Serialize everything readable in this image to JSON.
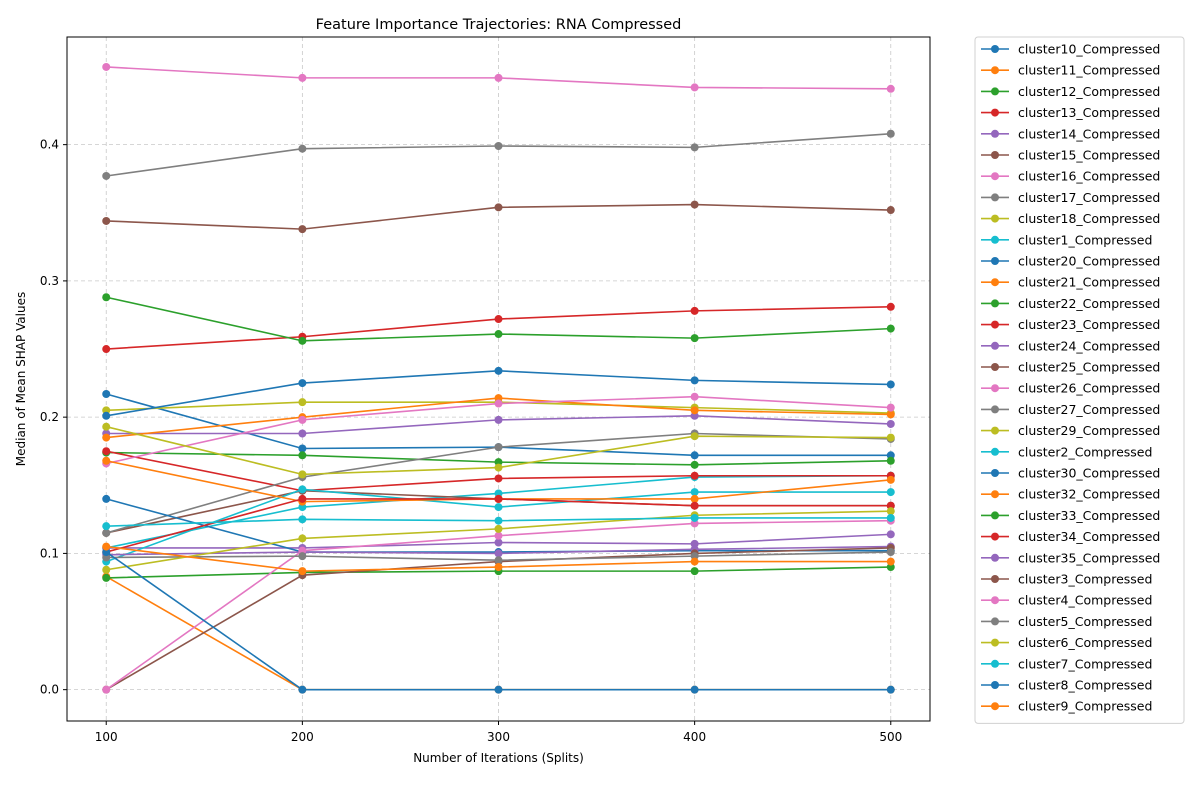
{
  "chart_data": {
    "type": "line",
    "title": "Feature Importance Trajectories: RNA Compressed",
    "xlabel": "Number of Iterations (Splits)",
    "ylabel": "Median of Mean SHAP Values",
    "x": [
      100,
      200,
      300,
      400,
      500
    ],
    "xlim": [
      80,
      520
    ],
    "ylim": [
      -0.023,
      0.479
    ],
    "xticks": [
      100,
      200,
      300,
      400,
      500
    ],
    "yticks": [
      0.0,
      0.1,
      0.2,
      0.3,
      0.4
    ],
    "ytick_labels": [
      "0.0",
      "0.1",
      "0.2",
      "0.3",
      "0.4"
    ],
    "grid": true,
    "legend_position": "outside-right",
    "series": [
      {
        "name": "cluster10_Compressed",
        "color": "#1f77b4",
        "values": [
          0.217,
          0.177,
          0.178,
          0.172,
          0.172
        ]
      },
      {
        "name": "cluster11_Compressed",
        "color": "#ff7f0e",
        "values": [
          0.083,
          0.0,
          0.0,
          0.0,
          0.0
        ]
      },
      {
        "name": "cluster12_Compressed",
        "color": "#2ca02c",
        "values": [
          0.174,
          0.172,
          0.167,
          0.165,
          0.168
        ]
      },
      {
        "name": "cluster13_Compressed",
        "color": "#d62728",
        "values": [
          0.25,
          0.259,
          0.272,
          0.278,
          0.281
        ]
      },
      {
        "name": "cluster14_Compressed",
        "color": "#9467bd",
        "values": [
          0.188,
          0.188,
          0.198,
          0.201,
          0.195
        ]
      },
      {
        "name": "cluster15_Compressed",
        "color": "#8c564b",
        "values": [
          0.344,
          0.338,
          0.354,
          0.356,
          0.352
        ]
      },
      {
        "name": "cluster16_Compressed",
        "color": "#e377c2",
        "values": [
          0.457,
          0.449,
          0.449,
          0.442,
          0.441
        ]
      },
      {
        "name": "cluster17_Compressed",
        "color": "#7f7f7f",
        "values": [
          0.377,
          0.397,
          0.399,
          0.398,
          0.408
        ]
      },
      {
        "name": "cluster18_Compressed",
        "color": "#bcbd22",
        "values": [
          0.205,
          0.211,
          0.211,
          0.207,
          0.203
        ]
      },
      {
        "name": "cluster1_Compressed",
        "color": "#17becf",
        "values": [
          0.104,
          0.134,
          0.144,
          0.156,
          0.157
        ]
      },
      {
        "name": "cluster20_Compressed",
        "color": "#1f77b4",
        "values": [
          0.201,
          0.225,
          0.234,
          0.227,
          0.224
        ]
      },
      {
        "name": "cluster21_Compressed",
        "color": "#ff7f0e",
        "values": [
          0.185,
          0.2,
          0.214,
          0.205,
          0.202
        ]
      },
      {
        "name": "cluster22_Compressed",
        "color": "#2ca02c",
        "values": [
          0.288,
          0.256,
          0.261,
          0.258,
          0.265
        ]
      },
      {
        "name": "cluster23_Compressed",
        "color": "#d62728",
        "values": [
          0.175,
          0.146,
          0.155,
          0.157,
          0.157
        ]
      },
      {
        "name": "cluster24_Compressed",
        "color": "#9467bd",
        "values": [
          0.104,
          0.104,
          0.108,
          0.107,
          0.114
        ]
      },
      {
        "name": "cluster25_Compressed",
        "color": "#8c564b",
        "values": [
          0.115,
          0.146,
          0.14,
          0.135,
          0.135
        ]
      },
      {
        "name": "cluster26_Compressed",
        "color": "#e377c2",
        "values": [
          0.166,
          0.198,
          0.21,
          0.215,
          0.207
        ]
      },
      {
        "name": "cluster27_Compressed",
        "color": "#7f7f7f",
        "values": [
          0.115,
          0.156,
          0.178,
          0.188,
          0.184
        ]
      },
      {
        "name": "cluster29_Compressed",
        "color": "#bcbd22",
        "values": [
          0.193,
          0.158,
          0.163,
          0.186,
          0.185
        ]
      },
      {
        "name": "cluster2_Compressed",
        "color": "#17becf",
        "values": [
          0.094,
          0.147,
          0.134,
          0.145,
          0.145
        ]
      },
      {
        "name": "cluster30_Compressed",
        "color": "#1f77b4",
        "values": [
          0.14,
          0.101,
          0.101,
          0.102,
          0.102
        ]
      },
      {
        "name": "cluster32_Compressed",
        "color": "#ff7f0e",
        "values": [
          0.168,
          0.138,
          0.14,
          0.14,
          0.154
        ]
      },
      {
        "name": "cluster33_Compressed",
        "color": "#2ca02c",
        "values": [
          0.082,
          0.086,
          0.087,
          0.087,
          0.09
        ]
      },
      {
        "name": "cluster34_Compressed",
        "color": "#d62728",
        "values": [
          0.101,
          0.14,
          0.14,
          0.135,
          0.135
        ]
      },
      {
        "name": "cluster35_Compressed",
        "color": "#9467bd",
        "values": [
          0.099,
          0.101,
          0.1,
          0.103,
          0.105
        ]
      },
      {
        "name": "cluster3_Compressed",
        "color": "#8c564b",
        "values": [
          0.0,
          0.084,
          0.094,
          0.1,
          0.104
        ]
      },
      {
        "name": "cluster4_Compressed",
        "color": "#e377c2",
        "values": [
          0.0,
          0.102,
          0.113,
          0.122,
          0.124
        ]
      },
      {
        "name": "cluster5_Compressed",
        "color": "#7f7f7f",
        "values": [
          0.097,
          0.098,
          0.095,
          0.098,
          0.101
        ]
      },
      {
        "name": "cluster6_Compressed",
        "color": "#bcbd22",
        "values": [
          0.088,
          0.111,
          0.118,
          0.128,
          0.131
        ]
      },
      {
        "name": "cluster7_Compressed",
        "color": "#17becf",
        "values": [
          0.12,
          0.125,
          0.124,
          0.126,
          0.126
        ]
      },
      {
        "name": "cluster8_Compressed",
        "color": "#1f77b4",
        "values": [
          0.101,
          0.0,
          0.0,
          0.0,
          0.0
        ]
      },
      {
        "name": "cluster9_Compressed",
        "color": "#ff7f0e",
        "values": [
          0.105,
          0.087,
          0.09,
          0.094,
          0.094
        ]
      }
    ]
  }
}
